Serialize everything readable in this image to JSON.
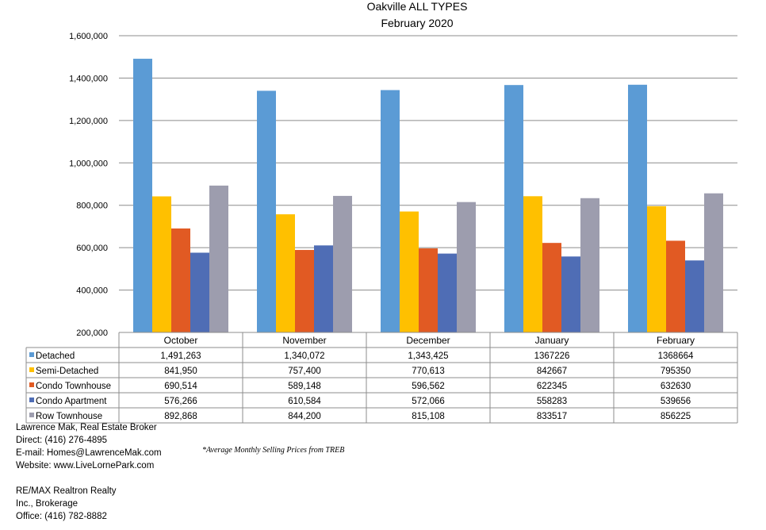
{
  "chart_data": {
    "type": "bar",
    "title": "Oakville ALL TYPES",
    "subtitle": "February 2020",
    "categories": [
      "October",
      "November",
      "December",
      "January",
      "February"
    ],
    "ylim": [
      200000,
      1600000
    ],
    "yticks": [
      "200,000",
      "400,000",
      "600,000",
      "800,000",
      "1,000,000",
      "1,200,000",
      "1,400,000",
      "1,600,000"
    ],
    "grid": true,
    "legend": "data-table",
    "series": [
      {
        "name": "Detached",
        "color": "#5B9BD5",
        "values": [
          1491263,
          1340072,
          1343425,
          1367226,
          1368664
        ],
        "labels": [
          "1,491,263",
          "1,340,072",
          "1,343,425",
          "1367226",
          "1368664"
        ]
      },
      {
        "name": "Semi-Detached",
        "color": "#FFC000",
        "values": [
          841950,
          757400,
          770613,
          842667,
          795350
        ],
        "labels": [
          "841,950",
          "757,400",
          "770,613",
          "842667",
          "795350"
        ]
      },
      {
        "name": "Condo Townhouse",
        "color": "#E15A23",
        "values": [
          690514,
          589148,
          596562,
          622345,
          632630
        ],
        "labels": [
          "690,514",
          "589,148",
          "596,562",
          "622345",
          "632630"
        ]
      },
      {
        "name": "Condo Apartment",
        "color": "#4F6DB5",
        "values": [
          576266,
          610584,
          572066,
          558283,
          539656
        ],
        "labels": [
          "576,266",
          "610,584",
          "572,066",
          "558283",
          "539656"
        ]
      },
      {
        "name": "Row Townhouse",
        "color": "#9D9DAE",
        "values": [
          892868,
          844200,
          815108,
          833517,
          856225
        ],
        "labels": [
          "892,868",
          "844,200",
          "815,108",
          "833517",
          "856225"
        ]
      }
    ]
  },
  "contact": {
    "name": "Lawrence Mak, Real Estate Broker",
    "direct": "Direct:  (416) 276-4895",
    "email": "E-mail:  Homes@LawrenceMak.com",
    "website": "Website: www.LiveLornePark.com",
    "brokerage_line1": "RE/MAX Realtron Realty",
    "brokerage_line2": "Inc., Brokerage",
    "office": "Office: (416) 782-8882"
  },
  "footnote": "*Average Monthly Selling Prices  from TREB"
}
